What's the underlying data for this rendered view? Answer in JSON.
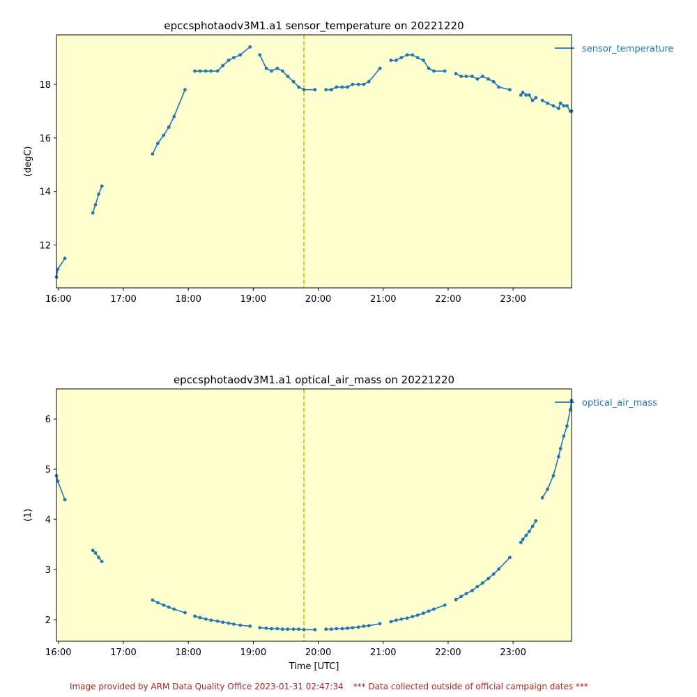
{
  "chart_data": [
    {
      "type": "line",
      "title": "epccsphotaodv3M1.a1 sensor_temperature on 20221220",
      "xlabel": "",
      "ylabel": "(degC)",
      "xlim": [
        15.97,
        23.9
      ],
      "ylim": [
        10.4,
        19.85
      ],
      "x_ticks": [
        "16:00",
        "17:00",
        "18:00",
        "19:00",
        "20:00",
        "21:00",
        "22:00",
        "23:00"
      ],
      "y_ticks": [
        12,
        14,
        16,
        18
      ],
      "background": "#ffffd0",
      "series_color": "#1f77b4",
      "vline": {
        "x": 19.78,
        "color": "#bfbf00",
        "style": "dashed"
      },
      "legend": "top-right",
      "series": [
        {
          "name": "sensor_temperature",
          "segments": [
            [
              [
                15.97,
                10.8
              ],
              [
                15.99,
                11.1
              ],
              [
                16.1,
                11.5
              ]
            ],
            [
              [
                16.53,
                13.2
              ],
              [
                16.57,
                13.5
              ],
              [
                16.62,
                13.9
              ],
              [
                16.67,
                14.2
              ]
            ],
            [
              [
                17.45,
                15.4
              ],
              [
                17.53,
                15.8
              ],
              [
                17.62,
                16.1
              ],
              [
                17.7,
                16.4
              ],
              [
                17.78,
                16.8
              ],
              [
                17.95,
                17.8
              ]
            ],
            [
              [
                18.1,
                18.5
              ],
              [
                18.18,
                18.5
              ],
              [
                18.27,
                18.5
              ],
              [
                18.35,
                18.5
              ],
              [
                18.45,
                18.5
              ],
              [
                18.53,
                18.7
              ],
              [
                18.62,
                18.9
              ],
              [
                18.7,
                19.0
              ],
              [
                18.8,
                19.1
              ],
              [
                18.95,
                19.4
              ]
            ],
            [
              [
                19.1,
                19.1
              ],
              [
                19.2,
                18.6
              ],
              [
                19.28,
                18.5
              ],
              [
                19.37,
                18.6
              ],
              [
                19.45,
                18.5
              ],
              [
                19.53,
                18.3
              ],
              [
                19.62,
                18.1
              ],
              [
                19.7,
                17.9
              ],
              [
                19.78,
                17.8
              ],
              [
                19.95,
                17.8
              ]
            ],
            [
              [
                20.12,
                17.8
              ],
              [
                20.2,
                17.8
              ],
              [
                20.28,
                17.9
              ],
              [
                20.37,
                17.9
              ],
              [
                20.45,
                17.9
              ],
              [
                20.53,
                18.0
              ],
              [
                20.62,
                18.0
              ],
              [
                20.7,
                18.0
              ],
              [
                20.78,
                18.1
              ],
              [
                20.95,
                18.6
              ]
            ],
            [
              [
                21.12,
                18.9
              ],
              [
                21.2,
                18.9
              ],
              [
                21.28,
                19.0
              ],
              [
                21.37,
                19.1
              ],
              [
                21.45,
                19.1
              ],
              [
                21.53,
                19.0
              ],
              [
                21.62,
                18.9
              ],
              [
                21.7,
                18.6
              ],
              [
                21.78,
                18.5
              ],
              [
                21.95,
                18.5
              ]
            ],
            [
              [
                22.12,
                18.4
              ],
              [
                22.2,
                18.3
              ],
              [
                22.28,
                18.3
              ],
              [
                22.37,
                18.3
              ],
              [
                22.45,
                18.2
              ],
              [
                22.53,
                18.3
              ],
              [
                22.62,
                18.2
              ],
              [
                22.7,
                18.1
              ],
              [
                22.78,
                17.9
              ],
              [
                22.95,
                17.8
              ]
            ],
            [
              [
                23.12,
                17.6
              ],
              [
                23.15,
                17.7
              ],
              [
                23.2,
                17.6
              ],
              [
                23.25,
                17.6
              ],
              [
                23.3,
                17.4
              ],
              [
                23.35,
                17.5
              ]
            ],
            [
              [
                23.45,
                17.4
              ],
              [
                23.53,
                17.3
              ],
              [
                23.62,
                17.2
              ],
              [
                23.7,
                17.1
              ],
              [
                23.73,
                17.3
              ],
              [
                23.78,
                17.2
              ],
              [
                23.83,
                17.2
              ],
              [
                23.88,
                17.0
              ],
              [
                23.9,
                17.0
              ]
            ]
          ]
        }
      ]
    },
    {
      "type": "line",
      "title": "epccsphotaodv3M1.a1 optical_air_mass on 20221220",
      "xlabel": "Time [UTC]",
      "ylabel": "(1)",
      "xlim": [
        15.97,
        23.9
      ],
      "ylim": [
        1.57,
        6.6
      ],
      "x_ticks": [
        "16:00",
        "17:00",
        "18:00",
        "19:00",
        "20:00",
        "21:00",
        "22:00",
        "23:00"
      ],
      "y_ticks": [
        2,
        3,
        4,
        5,
        6
      ],
      "background": "#ffffd0",
      "series_color": "#1f77b4",
      "vline": {
        "x": 19.78,
        "color": "#bfbf00",
        "style": "dashed"
      },
      "legend": "top-right",
      "series": [
        {
          "name": "optical_air_mass",
          "segments": [
            [
              [
                15.97,
                4.87
              ],
              [
                15.99,
                4.76
              ],
              [
                16.1,
                4.39
              ]
            ],
            [
              [
                16.53,
                3.38
              ],
              [
                16.57,
                3.33
              ],
              [
                16.62,
                3.24
              ],
              [
                16.67,
                3.16
              ]
            ],
            [
              [
                17.45,
                2.39
              ],
              [
                17.53,
                2.34
              ],
              [
                17.62,
                2.29
              ],
              [
                17.7,
                2.25
              ],
              [
                17.78,
                2.21
              ],
              [
                17.95,
                2.14
              ]
            ],
            [
              [
                18.1,
                2.07
              ],
              [
                18.18,
                2.04
              ],
              [
                18.27,
                2.01
              ],
              [
                18.35,
                1.99
              ],
              [
                18.45,
                1.97
              ],
              [
                18.53,
                1.95
              ],
              [
                18.62,
                1.93
              ],
              [
                18.7,
                1.91
              ],
              [
                18.8,
                1.89
              ],
              [
                18.95,
                1.87
              ]
            ],
            [
              [
                19.1,
                1.84
              ],
              [
                19.2,
                1.83
              ],
              [
                19.28,
                1.82
              ],
              [
                19.37,
                1.82
              ],
              [
                19.45,
                1.81
              ],
              [
                19.53,
                1.81
              ],
              [
                19.62,
                1.81
              ],
              [
                19.7,
                1.81
              ],
              [
                19.78,
                1.8
              ],
              [
                19.95,
                1.8
              ]
            ],
            [
              [
                20.12,
                1.81
              ],
              [
                20.2,
                1.81
              ],
              [
                20.28,
                1.82
              ],
              [
                20.37,
                1.82
              ],
              [
                20.45,
                1.83
              ],
              [
                20.53,
                1.84
              ],
              [
                20.62,
                1.85
              ],
              [
                20.7,
                1.87
              ],
              [
                20.78,
                1.88
              ],
              [
                20.95,
                1.92
              ]
            ],
            [
              [
                21.12,
                1.96
              ],
              [
                21.2,
                1.99
              ],
              [
                21.28,
                2.01
              ],
              [
                21.37,
                2.03
              ],
              [
                21.45,
                2.06
              ],
              [
                21.53,
                2.09
              ],
              [
                21.62,
                2.13
              ],
              [
                21.7,
                2.17
              ],
              [
                21.78,
                2.21
              ],
              [
                21.95,
                2.29
              ]
            ],
            [
              [
                22.12,
                2.4
              ],
              [
                22.2,
                2.46
              ],
              [
                22.28,
                2.52
              ],
              [
                22.37,
                2.58
              ],
              [
                22.45,
                2.66
              ],
              [
                22.53,
                2.73
              ],
              [
                22.62,
                2.82
              ],
              [
                22.7,
                2.91
              ],
              [
                22.78,
                3.01
              ],
              [
                22.95,
                3.24
              ]
            ],
            [
              [
                23.12,
                3.54
              ],
              [
                23.15,
                3.6
              ],
              [
                23.2,
                3.68
              ],
              [
                23.25,
                3.76
              ],
              [
                23.3,
                3.86
              ],
              [
                23.35,
                3.97
              ]
            ],
            [
              [
                23.45,
                4.43
              ],
              [
                23.53,
                4.6
              ],
              [
                23.62,
                4.87
              ],
              [
                23.7,
                5.25
              ],
              [
                23.73,
                5.41
              ],
              [
                23.78,
                5.66
              ],
              [
                23.83,
                5.86
              ],
              [
                23.88,
                6.18
              ],
              [
                23.9,
                6.37
              ]
            ]
          ]
        }
      ]
    }
  ],
  "footer": {
    "credit": "Image provided by ARM Data Quality Office 2023-01-31 02:47:34",
    "notice": "*** Data collected outside of official campaign dates ***"
  }
}
